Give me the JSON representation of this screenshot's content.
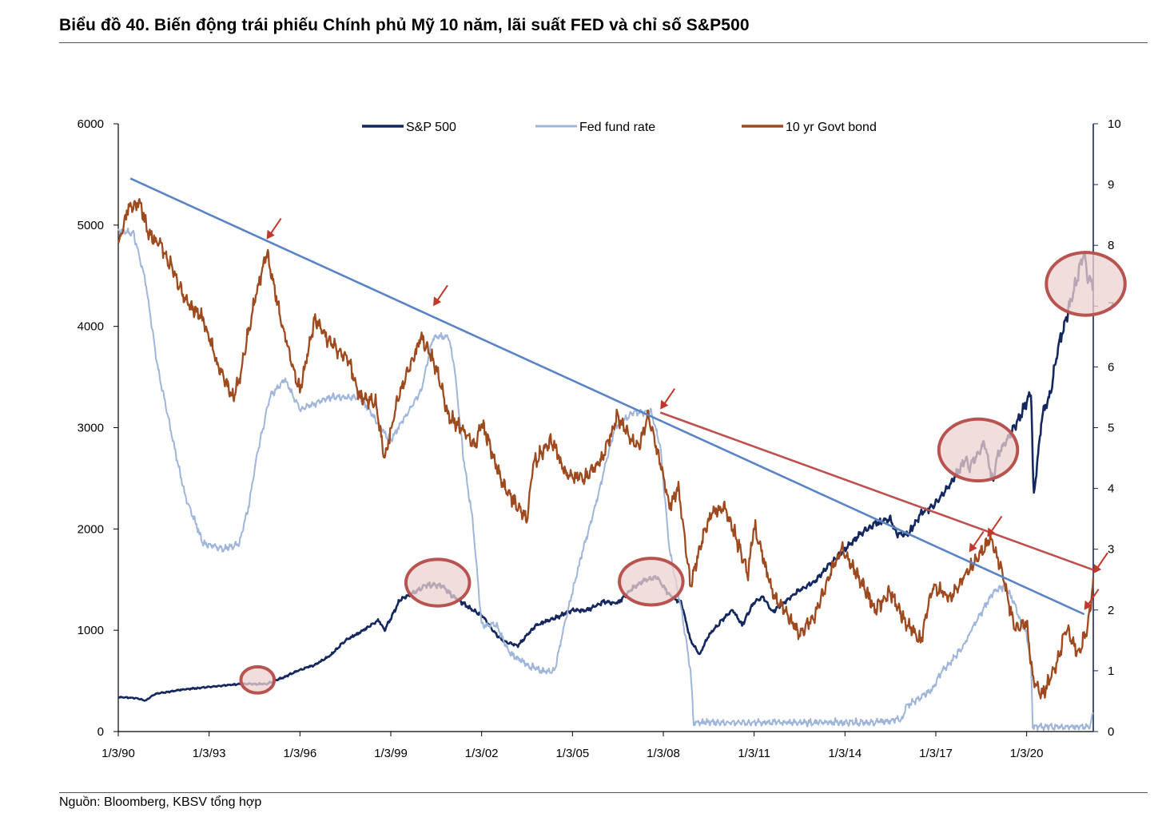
{
  "page": {
    "title": "Biểu đồ 40. Biến động trái phiếu Chính phủ Mỹ 10 năm, lãi suất FED và chỉ số S&P500",
    "source": "Nguồn: Bloomberg, KBSV tổng hợp"
  },
  "chart_data": {
    "type": "line",
    "title": "Biểu đồ 40. Biến động trái phiếu Chính phủ Mỹ 10 năm, lãi suất FED và chỉ số S&P500",
    "x_range": [
      1990.0,
      2022.2
    ],
    "x_ticks": [
      {
        "x": 1990,
        "label": "1/3/90"
      },
      {
        "x": 1993,
        "label": "1/3/93"
      },
      {
        "x": 1996,
        "label": "1/3/96"
      },
      {
        "x": 1999,
        "label": "1/3/99"
      },
      {
        "x": 2002,
        "label": "1/3/02"
      },
      {
        "x": 2005,
        "label": "1/3/05"
      },
      {
        "x": 2008,
        "label": "1/3/08"
      },
      {
        "x": 2011,
        "label": "1/3/11"
      },
      {
        "x": 2014,
        "label": "1/3/14"
      },
      {
        "x": 2017,
        "label": "1/3/17"
      },
      {
        "x": 2020,
        "label": "1/3/20"
      }
    ],
    "left_axis": {
      "min": 0,
      "max": 6000,
      "ticks": [
        "0",
        "1000",
        "2000",
        "3000",
        "4000",
        "5000",
        "6000"
      ]
    },
    "right_axis": {
      "min": 0,
      "max": 10,
      "ticks": [
        "0",
        "1",
        "2",
        "3",
        "4",
        "5",
        "6",
        "7",
        "8",
        "9",
        "10"
      ]
    },
    "legend": {
      "position": "top",
      "entries": [
        "S&P 500",
        "Fed fund rate",
        "10 yr Govt bond"
      ]
    },
    "colors": {
      "sp500": "#14275e",
      "fed": "#9fb5d9",
      "bond": "#9e4a1e",
      "trend_blue": "#5a84c6",
      "trend_red": "#c0504d",
      "arrow": "#c0392b",
      "circle_fill": "#edd2d2",
      "circle_stroke": "#b85450"
    },
    "series": [
      {
        "name": "S&P 500",
        "axis": "left",
        "x": [
          1990.0,
          1990.6,
          1990.9,
          1991.2,
          1992.0,
          1993.0,
          1994.0,
          1994.9,
          1995.5,
          1996.0,
          1996.5,
          1997.0,
          1997.5,
          1998.0,
          1998.6,
          1998.8,
          1999.3,
          1999.8,
          2000.2,
          2000.7,
          2001.0,
          2001.7,
          2002.0,
          2002.5,
          2002.8,
          2003.2,
          2003.8,
          2004.5,
          2005.0,
          2005.5,
          2006.0,
          2006.5,
          2007.0,
          2007.4,
          2007.8,
          2008.2,
          2008.6,
          2008.9,
          2009.2,
          2009.5,
          2010.0,
          2010.3,
          2010.6,
          2011.0,
          2011.3,
          2011.6,
          2011.9,
          2012.5,
          2013.0,
          2013.5,
          2014.0,
          2014.5,
          2015.0,
          2015.5,
          2015.7,
          2016.1,
          2016.5,
          2017.0,
          2017.5,
          2018.0,
          2018.1,
          2018.6,
          2018.9,
          2019.0,
          2019.5,
          2020.0,
          2020.15,
          2020.23,
          2020.5,
          2020.8,
          2021.0,
          2021.5,
          2021.9,
          2022.0,
          2022.2
        ],
        "y": [
          340,
          330,
          305,
          370,
          410,
          440,
          470,
          470,
          540,
          610,
          660,
          750,
          900,
          980,
          1100,
          1000,
          1300,
          1380,
          1450,
          1440,
          1350,
          1200,
          1150,
          950,
          880,
          850,
          1050,
          1130,
          1200,
          1200,
          1280,
          1270,
          1420,
          1500,
          1520,
          1350,
          1270,
          900,
          760,
          950,
          1120,
          1200,
          1050,
          1280,
          1330,
          1180,
          1250,
          1400,
          1480,
          1650,
          1800,
          1950,
          2050,
          2100,
          1950,
          1950,
          2150,
          2250,
          2450,
          2700,
          2600,
          2850,
          2450,
          2700,
          2950,
          3250,
          3350,
          2300,
          3100,
          3350,
          3750,
          4300,
          4750,
          4500,
          4400
        ]
      },
      {
        "name": "Fed fund rate",
        "axis": "right",
        "x": [
          1990.0,
          1990.5,
          1990.9,
          1991.3,
          1991.8,
          1992.2,
          1992.8,
          1993.5,
          1994.0,
          1994.3,
          1994.6,
          1995.0,
          1995.5,
          1996.0,
          1997.0,
          1998.0,
          1998.8,
          1999.0,
          1999.5,
          2000.0,
          2000.4,
          2000.9,
          2001.1,
          2001.4,
          2001.7,
          2002.0,
          2002.5,
          2002.9,
          2003.5,
          2004.0,
          2004.4,
          2004.8,
          2005.3,
          2005.8,
          2006.4,
          2007.0,
          2007.6,
          2007.9,
          2008.2,
          2008.6,
          2008.9,
          2009.0,
          2010.0,
          2012.0,
          2015.0,
          2015.9,
          2016.0,
          2016.9,
          2017.2,
          2017.5,
          2017.9,
          2018.2,
          2018.5,
          2018.9,
          2019.3,
          2019.6,
          2019.8,
          2020.0,
          2020.15,
          2020.2,
          2022.1,
          2022.2
        ],
        "y": [
          8.25,
          8.2,
          7.4,
          6.0,
          4.8,
          3.9,
          3.1,
          3.0,
          3.1,
          3.7,
          4.6,
          5.5,
          5.8,
          5.3,
          5.5,
          5.5,
          4.9,
          4.8,
          5.2,
          5.6,
          6.5,
          6.5,
          6.0,
          4.5,
          3.5,
          1.75,
          1.75,
          1.3,
          1.1,
          1.0,
          1.0,
          1.9,
          2.9,
          3.8,
          5.0,
          5.25,
          5.25,
          4.7,
          3.0,
          2.0,
          1.0,
          0.15,
          0.15,
          0.15,
          0.15,
          0.2,
          0.4,
          0.7,
          1.0,
          1.15,
          1.4,
          1.7,
          1.95,
          2.3,
          2.4,
          2.1,
          1.8,
          1.6,
          1.1,
          0.08,
          0.08,
          0.33
        ]
      },
      {
        "name": "10 yr Govt bond",
        "axis": "right",
        "x": [
          1990.0,
          1990.3,
          1990.7,
          1991.0,
          1991.4,
          1991.8,
          1992.2,
          1992.8,
          1993.3,
          1993.8,
          1994.0,
          1994.5,
          1994.9,
          1995.5,
          1996.0,
          1996.5,
          1997.0,
          1997.6,
          1998.0,
          1998.5,
          1998.8,
          1999.3,
          1999.8,
          2000.0,
          2000.5,
          2000.9,
          2001.3,
          2001.8,
          2002.0,
          2002.6,
          2002.9,
          2003.5,
          2003.7,
          2004.3,
          2004.8,
          2005.5,
          2006.0,
          2006.5,
          2006.9,
          2007.2,
          2007.5,
          2007.9,
          2008.2,
          2008.5,
          2008.9,
          2009.3,
          2009.6,
          2010.0,
          2010.4,
          2010.8,
          2011.0,
          2011.6,
          2012.0,
          2012.5,
          2013.0,
          2013.5,
          2013.9,
          2014.5,
          2015.0,
          2015.5,
          2016.0,
          2016.5,
          2016.9,
          2017.5,
          2018.0,
          2018.6,
          2018.8,
          2019.2,
          2019.6,
          2020.0,
          2020.2,
          2020.5,
          2021.0,
          2021.3,
          2021.7,
          2022.0,
          2022.1,
          2022.2
        ],
        "y": [
          8.0,
          8.6,
          8.7,
          8.2,
          8.0,
          7.6,
          7.1,
          6.8,
          6.0,
          5.5,
          5.8,
          7.1,
          7.9,
          6.5,
          5.6,
          6.8,
          6.4,
          6.1,
          5.5,
          5.4,
          4.5,
          5.6,
          6.2,
          6.5,
          6.0,
          5.2,
          5.0,
          4.7,
          5.1,
          4.2,
          3.9,
          3.5,
          4.4,
          4.8,
          4.2,
          4.2,
          4.5,
          5.2,
          4.8,
          4.7,
          5.2,
          4.4,
          3.7,
          4.0,
          2.4,
          3.2,
          3.6,
          3.7,
          3.2,
          2.6,
          3.4,
          2.3,
          2.0,
          1.6,
          1.9,
          2.6,
          3.0,
          2.5,
          2.0,
          2.3,
          1.8,
          1.5,
          2.4,
          2.2,
          2.6,
          3.0,
          3.2,
          2.6,
          1.7,
          1.8,
          0.9,
          0.6,
          1.1,
          1.7,
          1.3,
          1.7,
          2.0,
          2.5
        ]
      }
    ],
    "trend_lines": [
      {
        "color": "blue",
        "from": {
          "x": 1990.4,
          "y_right": 9.1
        },
        "to": {
          "x": 2021.9,
          "y_right": 1.93
        }
      },
      {
        "color": "red",
        "from": {
          "x": 2007.9,
          "y_right": 5.25
        },
        "to": {
          "x": 2022.2,
          "y_right": 2.66
        }
      }
    ],
    "arrows": [
      {
        "x": 1994.9,
        "y_right": 8.1
      },
      {
        "x": 2000.4,
        "y_right": 7.0
      },
      {
        "x": 2007.9,
        "y_right": 5.3
      },
      {
        "x": 2018.1,
        "y_right": 2.95
      },
      {
        "x": 2018.7,
        "y_right": 3.2
      },
      {
        "x": 2021.9,
        "y_right": 2.0
      },
      {
        "x": 2022.2,
        "y_right": 2.6
      }
    ],
    "highlights": [
      {
        "label": "S&P 500 1995",
        "x": 1994.6,
        "y_left": 510,
        "rx_years": 0.55,
        "ry_units": 130
      },
      {
        "label": "S&P 500 2000",
        "x": 2000.55,
        "y_left": 1470,
        "rx_years": 1.05,
        "ry_units": 230
      },
      {
        "label": "S&P 500 2007",
        "x": 2007.6,
        "y_left": 1480,
        "rx_years": 1.05,
        "ry_units": 230
      },
      {
        "label": "S&P 500 2018",
        "x": 2018.4,
        "y_left": 2780,
        "rx_years": 1.3,
        "ry_units": 305
      },
      {
        "label": "S&P 500 2022",
        "x": 2021.95,
        "y_left": 4420,
        "rx_years": 1.3,
        "ry_units": 310
      }
    ]
  }
}
